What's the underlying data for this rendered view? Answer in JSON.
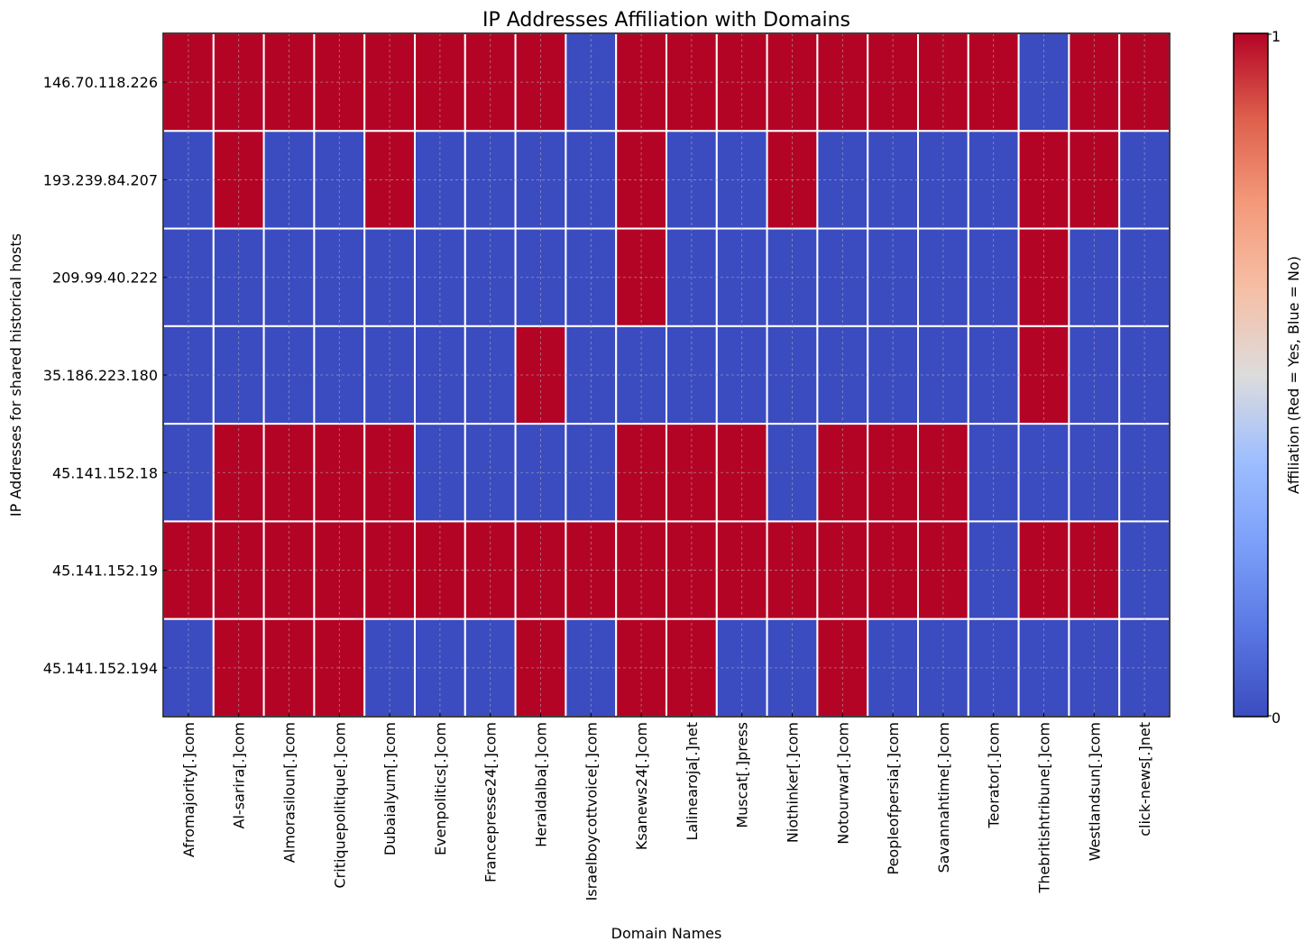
{
  "chart_data": {
    "type": "heatmap",
    "title": "IP Addresses Affiliation with Domains",
    "xlabel": "Domain Names",
    "ylabel": "IP Addresses for shared historical hosts",
    "colorbar_label": "Affiliation (Red = Yes, Blue = No)",
    "colorbar_ticks": [
      "0",
      "1"
    ],
    "colorbar_range": [
      0,
      1
    ],
    "colormap": "coolwarm",
    "colors": {
      "yes": "#b40426",
      "no": "#3b4cc0"
    },
    "grid": true,
    "x_categories": [
      "Afromajority[.]com",
      "Al-sarira[.]com",
      "Almorasiloun[.]com",
      "Critiquepolitique[.]com",
      "Dubaialyum[.]com",
      "Evenpolitics[.]com",
      "Francepresse24[.]com",
      "Heraldalba[.]com",
      "Israelboycottvoice[.]com",
      "Ksanews24[.]com",
      "Lalinearoja[.]net",
      "Muscat[.]press",
      "Niothinker[.]com",
      "Notourwar[.]com",
      "Peopleofpersia[.]com",
      "Savannahtime[.]com",
      "Teorator[.]com",
      "Thebritishtribune[.]com",
      "Westlandsun[.]com",
      "click-news[.]net"
    ],
    "y_categories": [
      "146.70.118.226",
      "193.239.84.207",
      "209.99.40.222",
      "35.186.223.180",
      "45.141.152.18",
      "45.141.152.19",
      "45.141.152.194"
    ],
    "values": [
      [
        1,
        1,
        1,
        1,
        1,
        1,
        1,
        1,
        0,
        1,
        1,
        1,
        1,
        1,
        1,
        1,
        1,
        0,
        1,
        1
      ],
      [
        0,
        1,
        0,
        0,
        1,
        0,
        0,
        0,
        0,
        1,
        0,
        0,
        1,
        0,
        0,
        0,
        0,
        1,
        1,
        0
      ],
      [
        0,
        0,
        0,
        0,
        0,
        0,
        0,
        0,
        0,
        1,
        0,
        0,
        0,
        0,
        0,
        0,
        0,
        1,
        0,
        0
      ],
      [
        0,
        0,
        0,
        0,
        0,
        0,
        0,
        1,
        0,
        0,
        0,
        0,
        0,
        0,
        0,
        0,
        0,
        1,
        0,
        0
      ],
      [
        0,
        1,
        1,
        1,
        1,
        0,
        0,
        0,
        0,
        1,
        1,
        1,
        0,
        1,
        1,
        1,
        0,
        0,
        0,
        0
      ],
      [
        1,
        1,
        1,
        1,
        1,
        1,
        1,
        1,
        1,
        1,
        1,
        1,
        1,
        1,
        1,
        1,
        0,
        1,
        1,
        0
      ],
      [
        0,
        1,
        1,
        1,
        0,
        0,
        0,
        1,
        0,
        1,
        1,
        0,
        0,
        1,
        0,
        0,
        0,
        0,
        0,
        0
      ]
    ]
  }
}
